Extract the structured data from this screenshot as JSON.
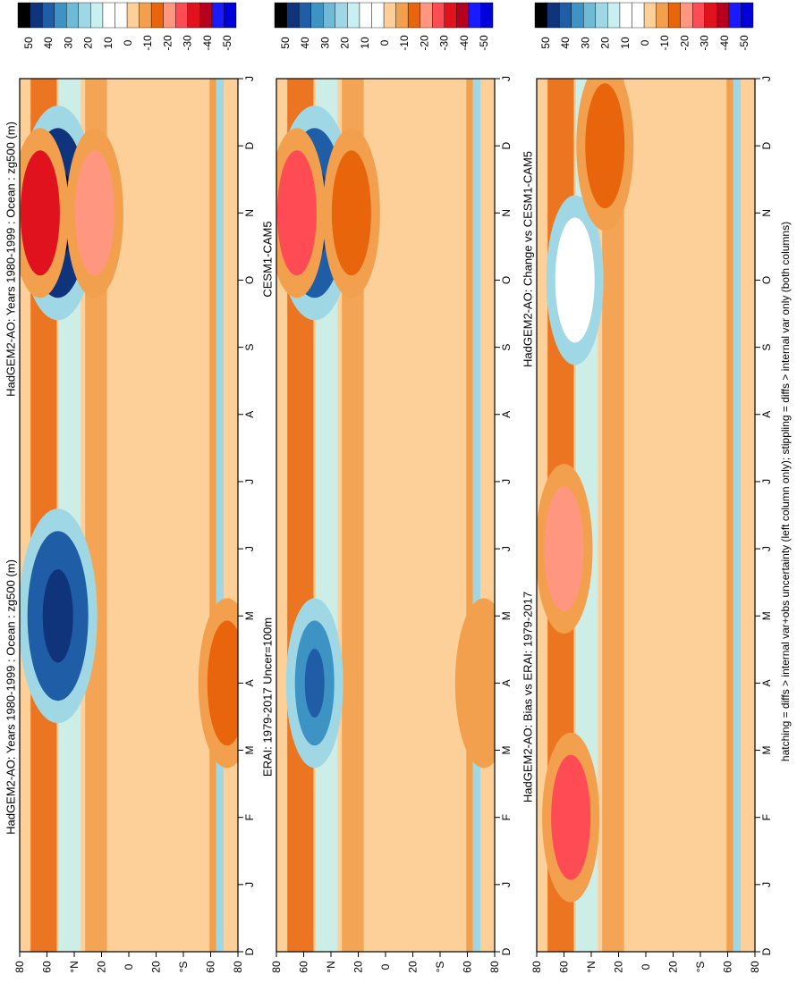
{
  "footer_note": "hatching = diffs > internal var+obs uncertainty (left column only); stippling = diffs > internal var only (both columns)",
  "palette": [
    "#0000d8",
    "#1a1aff",
    "#b4001e",
    "#e0121e",
    "#ff4b54",
    "#ff9680",
    "#e8650c",
    "#f2a04e",
    "#fdd099",
    "#ffffff",
    "#ffffff",
    "#c8f0f0",
    "#9fd8e4",
    "#6fbad4",
    "#3d94c4",
    "#1f5ea6",
    "#10347c",
    "#000000"
  ],
  "colorbar_ticks": [
    "50",
    "40",
    "30",
    "20",
    "10",
    "0",
    "-10",
    "-20",
    "-30",
    "-40",
    "-50"
  ],
  "month_ticks": [
    "D",
    "J",
    "F",
    "M",
    "A",
    "M",
    "J",
    "J",
    "A",
    "S",
    "O",
    "N",
    "D",
    "J"
  ],
  "lat_ticks": [
    "80",
    "60",
    "°N",
    "20",
    "0",
    "20",
    "°S",
    "60",
    "80"
  ],
  "chart_data": [
    {
      "type": "heatmap",
      "title": "HadGEM2-AO: Years 1980-1999 : Ocean : zg500 (m)",
      "x": "month",
      "y": "latitude",
      "colorbar_range": [
        -50,
        50
      ],
      "features": [
        {
          "month": 5,
          "lat": 52,
          "value": -40
        },
        {
          "month": 11,
          "lat": 52,
          "value": -45
        },
        {
          "month": 11,
          "lat": 65,
          "value": 30
        },
        {
          "month": 11,
          "lat": 25,
          "value": 20
        },
        {
          "month": 4,
          "lat": -72,
          "value": 15
        }
      ]
    },
    {
      "type": "heatmap",
      "title": "HadGEM2-AO: Years 1980-1999 : Ocean : zg500 (m)",
      "x": "month",
      "y": "latitude",
      "colorbar_range": [
        -50,
        50
      ],
      "features": [
        {
          "month": 5,
          "lat": 52,
          "value": -45
        },
        {
          "month": 11,
          "lat": 52,
          "value": -45
        },
        {
          "month": 11,
          "lat": 65,
          "value": 30
        },
        {
          "month": 11,
          "lat": 25,
          "value": 20
        },
        {
          "month": 4,
          "lat": -72,
          "value": 15
        }
      ]
    },
    {
      "type": "heatmap",
      "title": "ERAI: 1979-2017 Uncer=100m",
      "x": "month",
      "y": "latitude",
      "colorbar_range": [
        -50,
        50
      ],
      "features": [
        {
          "month": 4,
          "lat": 52,
          "value": -35
        },
        {
          "month": 11,
          "lat": 52,
          "value": -40
        },
        {
          "month": 11,
          "lat": 65,
          "value": 25
        },
        {
          "month": 11,
          "lat": 25,
          "value": 15
        },
        {
          "month": 4,
          "lat": -72,
          "value": 10
        }
      ]
    },
    {
      "type": "heatmap",
      "title": "CESM1-CAM5",
      "x": "month",
      "y": "latitude",
      "colorbar_range": [
        -50,
        50
      ],
      "features": [
        {
          "month": 2,
          "lat": 48,
          "value": -50
        },
        {
          "month": 5,
          "lat": 48,
          "value": -40
        },
        {
          "month": 11,
          "lat": 50,
          "value": -40
        },
        {
          "month": 11,
          "lat": 65,
          "value": 30
        },
        {
          "month": 4,
          "lat": -72,
          "value": 20
        }
      ]
    },
    {
      "type": "heatmap",
      "title": "HadGEM2-AO: Bias vs ERAI: 1979-2017",
      "x": "month",
      "y": "latitude",
      "colorbar_range": [
        -50,
        50
      ],
      "features": [
        {
          "month": 2,
          "lat": 55,
          "value": 25
        },
        {
          "month": 6,
          "lat": 60,
          "value": 20
        },
        {
          "month": 10,
          "lat": 52,
          "value": -10
        },
        {
          "month": 12,
          "lat": 30,
          "value": 15
        }
      ]
    },
    {
      "type": "heatmap",
      "title": "HadGEM2-AO: Change vs CESM1-CAM5",
      "x": "month",
      "y": "latitude",
      "colorbar_range": [
        -50,
        50
      ],
      "features": [
        {
          "month": 2,
          "lat": 50,
          "value": 50
        },
        {
          "month": 11,
          "lat": 55,
          "value": -15
        },
        {
          "month": 6,
          "lat": 60,
          "value": 15
        }
      ]
    }
  ]
}
